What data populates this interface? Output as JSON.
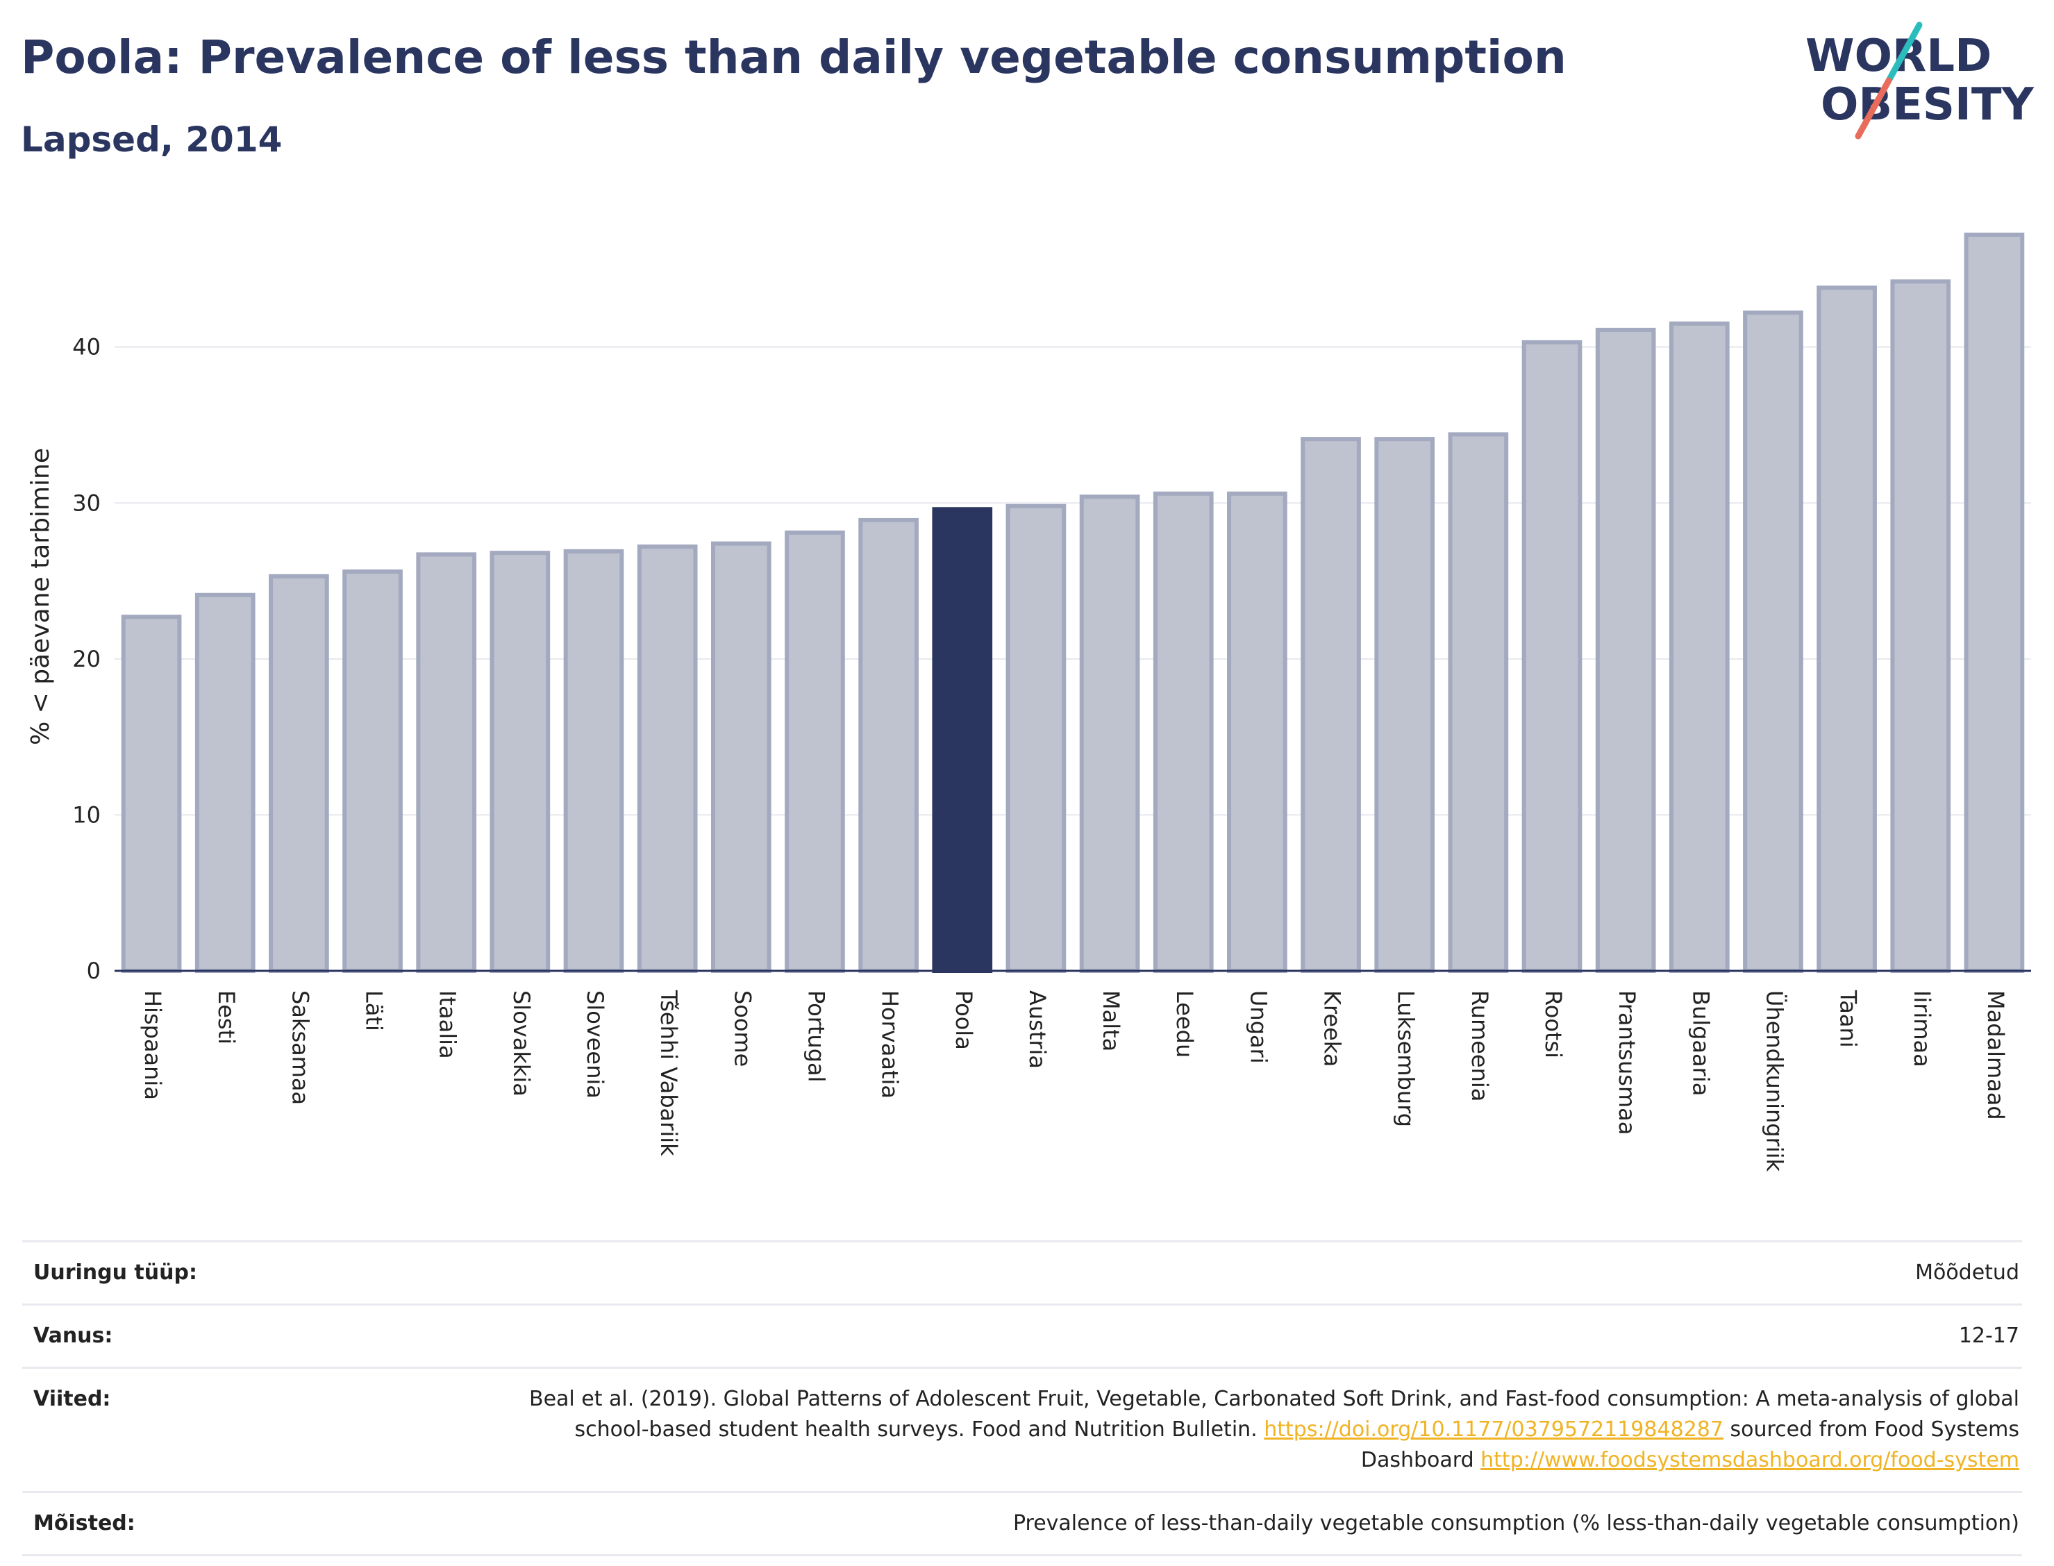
{
  "title": "Poola: Prevalence of less than daily vegetable consumption",
  "subtitle": "Lapsed, 2014",
  "logo": {
    "line1": "WORLD",
    "line2": "OBESITY"
  },
  "colors": {
    "highlight": "#2a3560",
    "bar": "#bfc2cf",
    "bar_stroke": "#a3a9bf",
    "link": "#f0b323",
    "logo_teal": "#2bbcbd",
    "logo_coral": "#e96b5b"
  },
  "chart_data": {
    "type": "bar",
    "title": "Poola: Prevalence of less than daily vegetable consumption",
    "subtitle": "Lapsed, 2014",
    "ylabel": "% < päevane tarbimine",
    "xlabel": "",
    "ylim": [
      0,
      48
    ],
    "yticks": [
      0,
      10,
      20,
      30,
      40
    ],
    "grid": true,
    "highlight": "Poola",
    "categories": [
      "Hispaania",
      "Eesti",
      "Saksamaa",
      "Läti",
      "Itaalia",
      "Slovakkia",
      "Sloveenia",
      "Tšehhi Vabariik",
      "Soome",
      "Portugal",
      "Horvaatia",
      "Poola",
      "Austria",
      "Malta",
      "Leedu",
      "Ungari",
      "Kreeka",
      "Luksemburg",
      "Rumeenia",
      "Rootsi",
      "Prantsusmaa",
      "Bulgaaria",
      "Ühendkuningriik",
      "Taani",
      "Iirimaa",
      "Madalmaad"
    ],
    "values": [
      22.7,
      24.1,
      25.3,
      25.6,
      26.7,
      26.8,
      26.9,
      27.2,
      27.4,
      28.1,
      28.9,
      29.6,
      29.8,
      30.4,
      30.6,
      30.6,
      34.1,
      34.1,
      34.4,
      40.3,
      41.1,
      41.5,
      42.2,
      43.8,
      44.2,
      47.2
    ]
  },
  "meta": {
    "survey_label": "Uuringu tüüp:",
    "survey_value": "Mõõdetud",
    "age_label": "Vanus:",
    "age_value": "12-17",
    "refs_label": "Viited:",
    "refs_text_1": "Beal et al. (2019). Global Patterns of Adolescent Fruit, Vegetable, Carbonated Soft Drink, and Fast-food consumption: A meta-analysis of global school-based student health surveys. Food and Nutrition Bulletin. ",
    "refs_link_1": "https://doi.org/10.1177/0379572119848287",
    "refs_text_2": " sourced from Food Systems Dashboard ",
    "refs_link_2": "http://www.foodsystemsdashboard.org/food-system",
    "def_label": "Mõisted:",
    "def_value": "Prevalence of less-than-daily vegetable consumption (% less-than-daily vegetable consumption)"
  }
}
